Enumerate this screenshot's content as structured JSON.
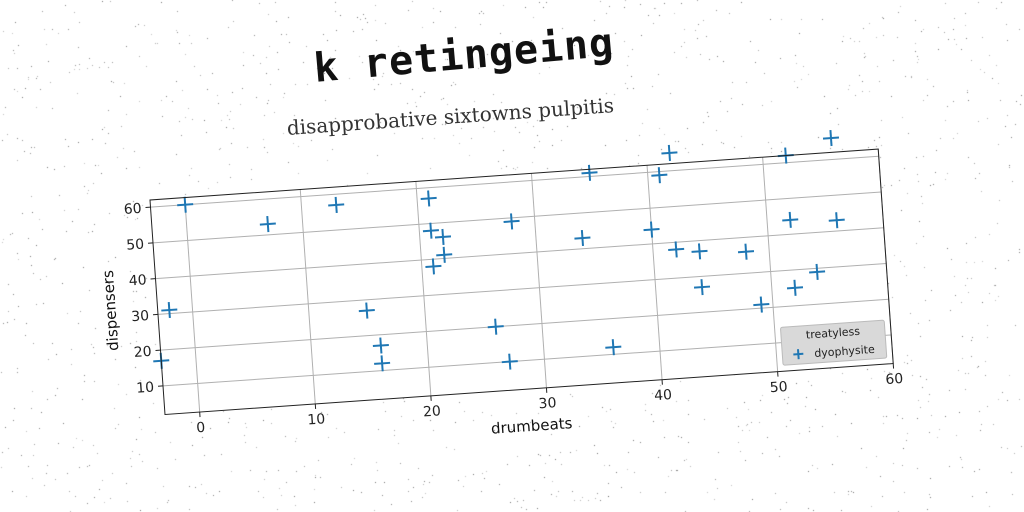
{
  "header": {
    "title": "k retingeing",
    "subtitle": "disapprobative sixtowns pulpitis"
  },
  "chart_data": {
    "type": "scatter",
    "title": "k retingeing",
    "subtitle": "disapprobative sixtowns pulpitis",
    "xlabel": "drumbeats",
    "ylabel": "dispensers",
    "xlim": [
      -3,
      60
    ],
    "ylim": [
      2,
      62
    ],
    "xticks": [
      0,
      10,
      20,
      30,
      40,
      50,
      60
    ],
    "yticks": [
      10,
      20,
      30,
      40,
      50,
      60
    ],
    "grid": true,
    "legend": {
      "title": "treatyless",
      "position": "bottom-right"
    },
    "series": [
      {
        "name": "dyophysite",
        "marker": "plus",
        "color": "#1f77b4",
        "points": [
          [
            0,
            60
          ],
          [
            -2,
            31
          ],
          [
            -3,
            17
          ],
          [
            7,
            53
          ],
          [
            13,
            57
          ],
          [
            15,
            27
          ],
          [
            16,
            17
          ],
          [
            16,
            12
          ],
          [
            21,
            57
          ],
          [
            21,
            48
          ],
          [
            22,
            46
          ],
          [
            22,
            41
          ],
          [
            21,
            38
          ],
          [
            28,
            49
          ],
          [
            26,
            20
          ],
          [
            27,
            10
          ],
          [
            35,
            61
          ],
          [
            34,
            43
          ],
          [
            36,
            12
          ],
          [
            42,
            65
          ],
          [
            41,
            59
          ],
          [
            40,
            44
          ],
          [
            42,
            38
          ],
          [
            44,
            37
          ],
          [
            44,
            27
          ],
          [
            48,
            36
          ],
          [
            49,
            21
          ],
          [
            52,
            62
          ],
          [
            52,
            44
          ],
          [
            52,
            25
          ],
          [
            54,
            29
          ],
          [
            56,
            66
          ],
          [
            56,
            43
          ]
        ]
      }
    ]
  }
}
